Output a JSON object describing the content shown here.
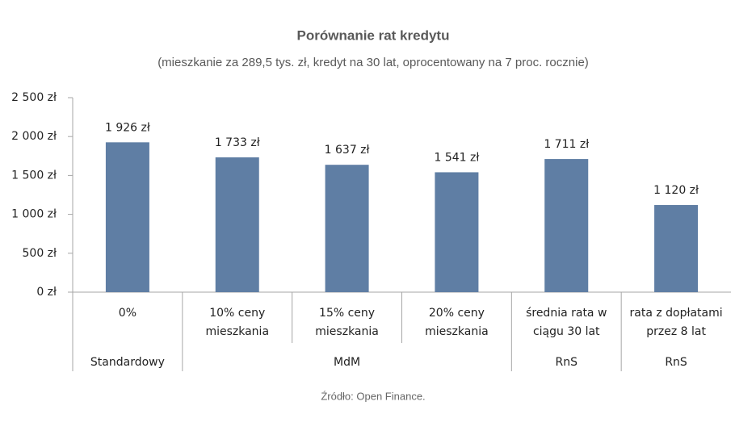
{
  "chart_data": {
    "type": "bar",
    "title": "Porównanie rat kredytu",
    "subtitle": "(mieszkanie za 289,5 tys. zł, kredyt na 30 lat, oprocentowany na 7 proc. rocznie)",
    "categories": [
      [
        "0%"
      ],
      [
        "10% ceny",
        "mieszkania"
      ],
      [
        "15% ceny",
        "mieszkania"
      ],
      [
        "20% ceny",
        "mieszkania"
      ],
      [
        "średnia rata w",
        "ciągu 30 lat"
      ],
      [
        "rata z dopłatami",
        "przez 8 lat"
      ]
    ],
    "groups": [
      {
        "label": "Standardowy",
        "span": 1
      },
      {
        "label": "MdM",
        "span": 3
      },
      {
        "label": "RnS",
        "span": 1
      },
      {
        "label": "RnS",
        "span": 1
      }
    ],
    "values": [
      1926,
      1733,
      1637,
      1541,
      1711,
      1120
    ],
    "value_labels": [
      "1 926 zł",
      "1 733 zł",
      "1 637 zł",
      "1 541 zł",
      "1 711 zł",
      "1 120 zł"
    ],
    "color": "#5f7ea4",
    "ylim": [
      0,
      2500
    ],
    "yticks": [
      {
        "value": 0,
        "label": "0 zł"
      },
      {
        "value": 500,
        "label": "500 zł"
      },
      {
        "value": 1000,
        "label": "1 000 zł"
      },
      {
        "value": 1500,
        "label": "1 500 zł"
      },
      {
        "value": 2000,
        "label": "2 000 zł"
      },
      {
        "value": 2500,
        "label": "2 500 zł"
      }
    ],
    "grid": false,
    "source": "Źródło: Open Finance."
  }
}
